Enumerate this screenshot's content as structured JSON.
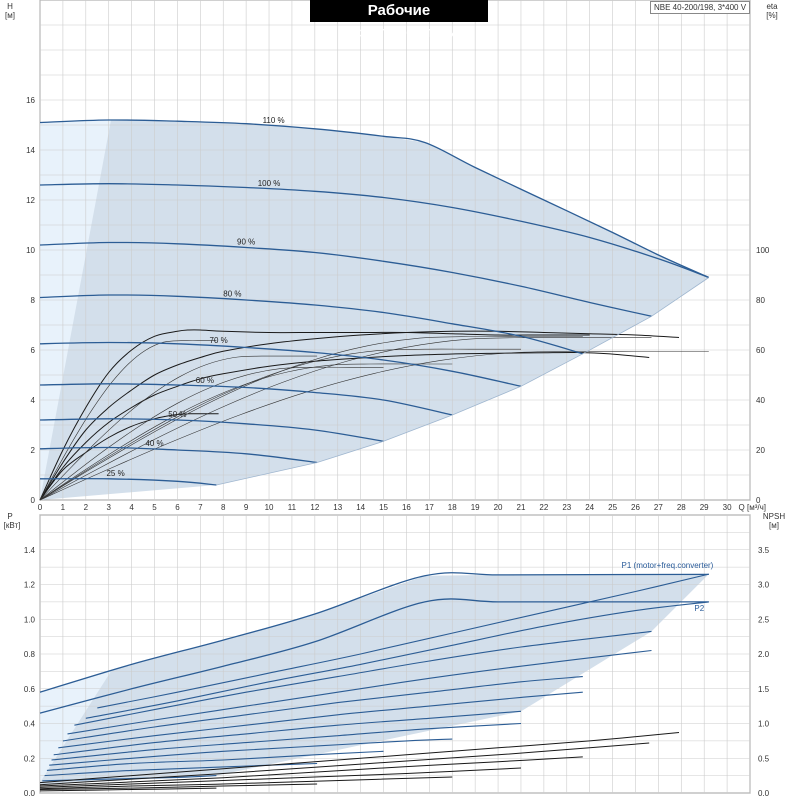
{
  "header": {
    "title": "Рабочие характеристики",
    "model": "NBE 40-200/198, 3*400 V"
  },
  "chart_data": [
    {
      "type": "line",
      "panel": "top",
      "xlabel": "Q [м³/ч]",
      "ylabel_left": "H [м]",
      "ylabel_right": "eta [%]",
      "xlim": [
        0,
        31
      ],
      "ylim": [
        0,
        20
      ],
      "eta_lim": [
        0,
        200
      ],
      "x_ticks": [
        "0",
        "1",
        "2",
        "3",
        "4",
        "5",
        "6",
        "7",
        "8",
        "9",
        "10",
        "11",
        "12",
        "13",
        "14",
        "15",
        "16",
        "17",
        "18",
        "19",
        "20",
        "21",
        "22",
        "23",
        "24",
        "25",
        "26",
        "27",
        "28",
        "29",
        "30"
      ],
      "y_ticks": [
        "0",
        "2",
        "4",
        "6",
        "8",
        "10",
        "12",
        "14",
        "16"
      ],
      "eta_ticks": [
        "0",
        "20",
        "40",
        "60",
        "80",
        "100"
      ],
      "grid": true,
      "shaded_region_note": "operating range",
      "speed_curves": [
        {
          "name": "110 %",
          "x": [
            0,
            3,
            6,
            9,
            12,
            15,
            16.8,
            19,
            22,
            25,
            27,
            29.2
          ],
          "y": [
            15.1,
            15.2,
            15.15,
            15.05,
            14.85,
            14.55,
            14.3,
            13.3,
            12.0,
            10.7,
            9.8,
            8.9
          ]
        },
        {
          "name": "100 %",
          "x": [
            0,
            3,
            6,
            9,
            12,
            15,
            18,
            21,
            24,
            27,
            29.2
          ],
          "y": [
            12.6,
            12.65,
            12.6,
            12.5,
            12.35,
            12.1,
            11.7,
            11.15,
            10.5,
            9.65,
            8.9
          ]
        },
        {
          "name": "90 %",
          "x": [
            0,
            3,
            6,
            9,
            12,
            15,
            18,
            21,
            24,
            26.7
          ],
          "y": [
            10.2,
            10.3,
            10.25,
            10.1,
            9.9,
            9.55,
            9.1,
            8.55,
            7.9,
            7.35
          ]
        },
        {
          "name": "80 %",
          "x": [
            0,
            3,
            6,
            9,
            12,
            15,
            18,
            21,
            23.7
          ],
          "y": [
            8.1,
            8.2,
            8.15,
            8.0,
            7.8,
            7.5,
            7.05,
            6.55,
            5.85
          ]
        },
        {
          "name": "70 %",
          "x": [
            0,
            3,
            6,
            9,
            12,
            15,
            18,
            21
          ],
          "y": [
            6.25,
            6.3,
            6.25,
            6.1,
            5.9,
            5.6,
            5.15,
            4.55
          ]
        },
        {
          "name": "60 %",
          "x": [
            0,
            3,
            6,
            9,
            12,
            15,
            18
          ],
          "y": [
            4.6,
            4.65,
            4.6,
            4.5,
            4.3,
            4.0,
            3.4
          ]
        },
        {
          "name": "50 %",
          "x": [
            0,
            3,
            6,
            9,
            12,
            15
          ],
          "y": [
            3.2,
            3.25,
            3.2,
            3.05,
            2.8,
            2.35
          ]
        },
        {
          "name": "40 %",
          "x": [
            0,
            3,
            6,
            9,
            12.1
          ],
          "y": [
            2.05,
            2.1,
            2.0,
            1.85,
            1.5
          ]
        },
        {
          "name": "25 %",
          "x": [
            0,
            3,
            6,
            7.7
          ],
          "y": [
            0.85,
            0.85,
            0.75,
            0.6
          ]
        }
      ],
      "efficiency_curves": [
        {
          "x": [
            0,
            1,
            2,
            3,
            4,
            5,
            6,
            7,
            8,
            10,
            12,
            14,
            16,
            18,
            20,
            22,
            24,
            26,
            27.9
          ],
          "eta": [
            0,
            15,
            28,
            37,
            44,
            50,
            54,
            57,
            59.5,
            62.5,
            64.5,
            66,
            67,
            67.5,
            67.5,
            67,
            66.5,
            66,
            65
          ]
        },
        {
          "x": [
            0,
            1,
            2,
            3,
            4,
            5,
            6,
            7,
            8,
            10,
            12,
            14,
            16,
            18,
            20,
            22,
            23.5,
            24.8,
            26.6
          ],
          "eta": [
            0,
            13,
            23,
            31,
            37,
            42,
            45.5,
            48.5,
            50.5,
            53.5,
            55.5,
            56.8,
            57.8,
            58.4,
            58.7,
            58.9,
            59,
            58.5,
            57
          ]
        },
        {
          "x": [
            0,
            1,
            2,
            3,
            4,
            5,
            5.5,
            6,
            6.5,
            7,
            7.8
          ],
          "eta": [
            0,
            12,
            19,
            25,
            29.5,
            32.5,
            33.5,
            34.2,
            34.5,
            34.5,
            34.5
          ]
        },
        {
          "x": [
            0,
            1,
            2,
            3,
            4,
            5,
            6,
            6.5,
            7,
            8,
            10,
            12,
            14,
            16,
            18,
            20,
            22,
            24
          ],
          "eta": [
            0,
            20,
            37,
            51,
            60,
            65.5,
            67.5,
            68,
            68,
            67.5,
            67,
            67,
            67,
            67,
            66.5,
            66,
            66,
            66
          ]
        }
      ],
      "labels": [
        "110 %",
        "100 %",
        "90 %",
        "80 %",
        "70 %",
        "60 %",
        "50 %",
        "40 %",
        "25 %"
      ]
    },
    {
      "type": "line",
      "panel": "bottom",
      "ylabel_left": "P [кВт]",
      "ylabel_right": "NPSH [м]",
      "xlim": [
        0,
        31
      ],
      "ylim": [
        0,
        1.6
      ],
      "npsh_lim": [
        0,
        4.0
      ],
      "y_ticks": [
        "0.0",
        "0.2",
        "0.4",
        "0.6",
        "0.8",
        "1.0",
        "1.2",
        "1.4"
      ],
      "npsh_ticks": [
        "0.0",
        "0.5",
        "1.0",
        "1.5",
        "2.0",
        "2.5",
        "3.0",
        "3.5"
      ],
      "grid": true,
      "series": [
        {
          "name": "P1 (motor+freq.converter)",
          "x": [
            0,
            4,
            8,
            12,
            16.8,
            20,
            24,
            29.2
          ],
          "y": [
            0.58,
            0.74,
            0.88,
            1.03,
            1.25,
            1.255,
            1.257,
            1.258
          ]
        },
        {
          "name": "P2",
          "x": [
            0,
            4,
            8,
            12,
            16.8,
            20,
            24,
            29.2
          ],
          "y": [
            0.46,
            0.6,
            0.73,
            0.87,
            1.1,
            1.1,
            1.1,
            1.1
          ]
        }
      ],
      "power_curves": [
        {
          "x": [
            2.5,
            6,
            10,
            14,
            18,
            22,
            26,
            29.2
          ],
          "y": [
            0.49,
            0.58,
            0.69,
            0.8,
            0.92,
            1.04,
            1.16,
            1.26
          ]
        },
        {
          "x": [
            2.0,
            6,
            10,
            14,
            18,
            22,
            26,
            29.2
          ],
          "y": [
            0.43,
            0.53,
            0.64,
            0.74,
            0.85,
            0.96,
            1.05,
            1.1
          ]
        },
        {
          "x": [
            1.5,
            5,
            9,
            13,
            17,
            21,
            26.7
          ],
          "y": [
            0.39,
            0.48,
            0.58,
            0.67,
            0.76,
            0.84,
            0.93
          ]
        },
        {
          "x": [
            1.2,
            5,
            9,
            13,
            17,
            21,
            26.7
          ],
          "y": [
            0.34,
            0.42,
            0.5,
            0.58,
            0.66,
            0.73,
            0.82
          ]
        },
        {
          "x": [
            1.0,
            5,
            9,
            13,
            17,
            21,
            23.7
          ],
          "y": [
            0.3,
            0.38,
            0.45,
            0.52,
            0.58,
            0.64,
            0.67
          ]
        },
        {
          "x": [
            0.8,
            5,
            9,
            13,
            17,
            21,
            23.7
          ],
          "y": [
            0.26,
            0.33,
            0.39,
            0.45,
            0.5,
            0.55,
            0.58
          ]
        },
        {
          "x": [
            0.6,
            5,
            9,
            13,
            17,
            21
          ],
          "y": [
            0.22,
            0.29,
            0.34,
            0.39,
            0.43,
            0.47
          ]
        },
        {
          "x": [
            0.5,
            5,
            9,
            13,
            17,
            21
          ],
          "y": [
            0.19,
            0.25,
            0.29,
            0.33,
            0.37,
            0.4
          ]
        },
        {
          "x": [
            0.4,
            4,
            8,
            12,
            16,
            18
          ],
          "y": [
            0.16,
            0.2,
            0.24,
            0.27,
            0.3,
            0.31
          ]
        },
        {
          "x": [
            0.3,
            4,
            8,
            12,
            15
          ],
          "y": [
            0.13,
            0.17,
            0.19,
            0.22,
            0.24
          ]
        },
        {
          "x": [
            0.2,
            4,
            8,
            12.1
          ],
          "y": [
            0.1,
            0.13,
            0.15,
            0.17
          ]
        },
        {
          "x": [
            0.1,
            3,
            6,
            7.7
          ],
          "y": [
            0.07,
            0.08,
            0.09,
            0.1
          ]
        }
      ],
      "npsh_curves": [
        {
          "x": [
            0,
            4,
            8,
            12,
            16,
            20,
            24,
            27.9
          ],
          "npsh": [
            0.15,
            0.25,
            0.35,
            0.45,
            0.55,
            0.65,
            0.75,
            0.87
          ]
        },
        {
          "x": [
            0,
            4,
            8,
            12,
            16,
            20,
            24,
            26.6
          ],
          "npsh": [
            0.12,
            0.2,
            0.28,
            0.37,
            0.46,
            0.55,
            0.65,
            0.72
          ]
        },
        {
          "x": [
            0,
            4,
            8,
            12,
            16,
            20,
            23.7
          ],
          "npsh": [
            0.1,
            0.16,
            0.22,
            0.3,
            0.38,
            0.45,
            0.52
          ]
        },
        {
          "x": [
            0,
            4,
            8,
            12,
            16,
            21
          ],
          "npsh": [
            0.08,
            0.13,
            0.18,
            0.23,
            0.28,
            0.36
          ]
        },
        {
          "x": [
            0,
            4,
            8,
            12,
            18
          ],
          "npsh": [
            0.06,
            0.1,
            0.13,
            0.17,
            0.23
          ]
        },
        {
          "x": [
            0,
            4,
            8,
            12.1
          ],
          "npsh": [
            0.05,
            0.07,
            0.1,
            0.13
          ]
        },
        {
          "x": [
            0,
            4,
            7.7
          ],
          "npsh": [
            0.03,
            0.05,
            0.07
          ]
        }
      ]
    }
  ]
}
